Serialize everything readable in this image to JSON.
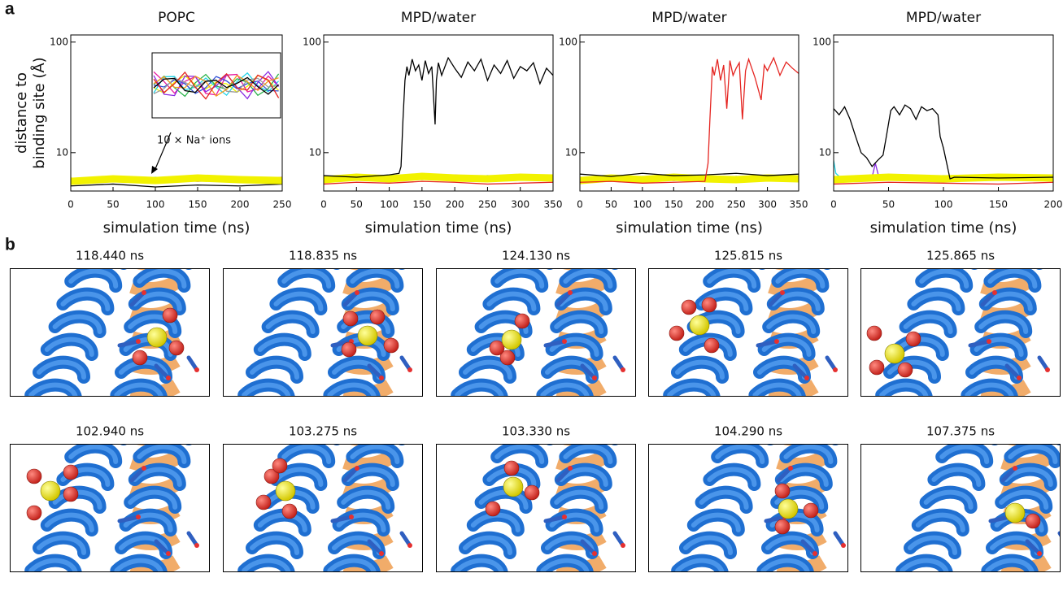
{
  "figure": {
    "panel_a": "a",
    "panel_b": "b",
    "snapshots": [
      "118.440 ns",
      "118.835 ns",
      "124.130 ns",
      "125.815 ns",
      "125.865 ns",
      "102.940 ns",
      "103.275 ns",
      "103.330 ns",
      "104.290 ns",
      "107.375 ns"
    ]
  },
  "chart_data": [
    {
      "type": "line",
      "title": "POPC",
      "xlabel": "simulation time (ns)",
      "ylabel": [
        "distance to",
        "binding site (Å)"
      ],
      "annotation": "10 × Na⁺ ions",
      "yscale": "log",
      "xlim": [
        0,
        250
      ],
      "xticks": [
        0,
        50,
        100,
        150,
        200,
        250
      ],
      "ylim": [
        4.5,
        116
      ],
      "yticks": [
        10,
        100
      ],
      "series": [
        {
          "color": "#000000",
          "x": [
            0,
            50,
            100,
            150,
            200,
            250
          ],
          "values": [
            5.0,
            5.2,
            4.9,
            5.1,
            5.0,
            5.2
          ]
        },
        {
          "color": "#e81ea0",
          "x": [
            0,
            50,
            100,
            150,
            200,
            250
          ],
          "values": [
            5.6,
            5.9,
            5.5,
            5.8,
            5.7,
            6.0
          ]
        },
        {
          "color": "#22d3e6",
          "x": [
            0,
            50,
            100,
            150,
            200,
            250
          ],
          "values": [
            5.8,
            5.5,
            6.0,
            5.7,
            5.9,
            5.6
          ]
        },
        {
          "color": "#2f4fd8",
          "x": [
            0,
            50,
            100,
            150,
            200,
            250
          ],
          "values": [
            5.4,
            5.7,
            5.5,
            5.6,
            5.4,
            5.8
          ]
        },
        {
          "color": "#29b34a",
          "x": [
            0,
            50,
            100,
            150,
            200,
            250
          ],
          "values": [
            5.7,
            5.9,
            5.6,
            6.0,
            5.8,
            5.7
          ]
        },
        {
          "color": "#8a2be2",
          "x": [
            0,
            50,
            100,
            150,
            200,
            250
          ],
          "values": [
            5.5,
            5.6,
            5.9,
            5.5,
            5.7,
            5.9
          ]
        },
        {
          "color": "#e52521",
          "x": [
            0,
            50,
            100,
            150,
            200,
            250
          ],
          "values": [
            5.3,
            5.5,
            5.4,
            5.6,
            5.5,
            5.3
          ]
        },
        {
          "color": "#f39a1e",
          "x": [
            0,
            50,
            100,
            150,
            200,
            250
          ],
          "values": [
            5.9,
            5.6,
            5.8,
            5.5,
            6.0,
            5.7
          ]
        },
        {
          "color": "#9a9a9a",
          "x": [
            0,
            50,
            100,
            150,
            200,
            250
          ],
          "values": [
            5.6,
            5.8,
            5.7,
            5.9,
            5.6,
            5.8
          ]
        },
        {
          "color": "#f2f200",
          "x": [
            0,
            50,
            100,
            150,
            200,
            250
          ],
          "values": [
            5.5,
            5.8,
            5.6,
            5.9,
            5.7,
            5.6
          ]
        }
      ]
    },
    {
      "type": "line",
      "title": "MPD/water",
      "xlabel": "simulation time (ns)",
      "yscale": "log",
      "xlim": [
        0,
        350
      ],
      "xticks": [
        0,
        50,
        100,
        150,
        200,
        250,
        300,
        350
      ],
      "ylim": [
        4.5,
        116
      ],
      "yticks": [
        10,
        100
      ],
      "series": [
        {
          "color": "#e81ea0",
          "x": [
            0,
            50,
            100,
            150,
            200,
            250,
            300,
            350
          ],
          "values": [
            5.9,
            6.2,
            5.8,
            6.1,
            6.3,
            5.9,
            6.2,
            6.0
          ]
        },
        {
          "color": "#22d3e6",
          "x": [
            0,
            50,
            100,
            150,
            200,
            250,
            300,
            350
          ],
          "values": [
            6.1,
            5.8,
            6.3,
            6.0,
            5.9,
            6.2,
            6.0,
            6.1
          ]
        },
        {
          "color": "#2f4fd8",
          "x": [
            0,
            50,
            100,
            150,
            200,
            250,
            300,
            350
          ],
          "values": [
            5.6,
            5.9,
            5.7,
            5.8,
            5.6,
            6.0,
            5.7,
            5.8
          ]
        },
        {
          "color": "#29b34a",
          "x": [
            0,
            50,
            100,
            150,
            200,
            250,
            300,
            350
          ],
          "values": [
            6.0,
            6.2,
            5.9,
            6.3,
            6.1,
            6.0,
            6.2,
            5.9
          ]
        },
        {
          "color": "#8a2be2",
          "x": [
            0,
            50,
            100,
            150,
            200,
            250,
            300,
            350
          ],
          "values": [
            5.7,
            5.8,
            6.1,
            5.7,
            5.9,
            6.2,
            5.8,
            6.0
          ]
        },
        {
          "color": "#e52521",
          "x": [
            0,
            50,
            100,
            150,
            200,
            250,
            300,
            350
          ],
          "values": [
            5.2,
            5.4,
            5.3,
            5.5,
            5.4,
            5.2,
            5.3,
            5.4
          ]
        },
        {
          "color": "#f39a1e",
          "x": [
            0,
            50,
            100,
            150,
            200,
            250,
            300,
            350
          ],
          "values": [
            6.1,
            5.8,
            6.0,
            5.7,
            6.2,
            5.9,
            6.0,
            5.8
          ]
        },
        {
          "color": "#9a9a9a",
          "x": [
            0,
            50,
            100,
            150,
            200,
            250,
            300,
            350
          ],
          "values": [
            5.8,
            6.0,
            5.9,
            6.1,
            5.8,
            6.0,
            5.9,
            6.1
          ]
        },
        {
          "color": "#f2f200",
          "x": [
            0,
            50,
            100,
            150,
            200,
            250,
            300,
            350
          ],
          "values": [
            5.7,
            6.0,
            5.8,
            6.1,
            5.9,
            5.8,
            6.0,
            5.9
          ]
        },
        {
          "color": "#000000",
          "x": [
            0,
            50,
            100,
            115,
            118,
            121,
            124,
            127,
            130,
            135,
            140,
            145,
            150,
            155,
            160,
            165,
            170,
            172,
            175,
            180,
            190,
            200,
            210,
            220,
            230,
            240,
            250,
            260,
            270,
            280,
            290,
            300,
            310,
            320,
            330,
            340,
            350
          ],
          "values": [
            6.2,
            6.0,
            6.3,
            6.5,
            7.5,
            20,
            45,
            60,
            50,
            70,
            55,
            62,
            45,
            68,
            52,
            60,
            18,
            45,
            65,
            50,
            72,
            58,
            48,
            66,
            55,
            70,
            45,
            62,
            52,
            68,
            47,
            60,
            55,
            65,
            42,
            58,
            50
          ]
        }
      ]
    },
    {
      "type": "line",
      "title": "MPD/water",
      "xlabel": "simulation time (ns)",
      "yscale": "log",
      "xlim": [
        0,
        350
      ],
      "xticks": [
        0,
        50,
        100,
        150,
        200,
        250,
        300,
        350
      ],
      "ylim": [
        4.5,
        116
      ],
      "yticks": [
        10,
        100
      ],
      "series": [
        {
          "color": "#e81ea0",
          "x": [
            0,
            50,
            100,
            150,
            200,
            250,
            300,
            350
          ],
          "values": [
            5.8,
            6.0,
            5.7,
            5.9,
            6.1,
            5.8,
            6.0,
            5.9
          ]
        },
        {
          "color": "#22d3e6",
          "x": [
            0,
            50,
            100,
            150,
            200,
            250,
            300,
            350
          ],
          "values": [
            6.0,
            5.7,
            6.1,
            5.9,
            5.8,
            6.1,
            5.9,
            6.0
          ]
        },
        {
          "color": "#2f4fd8",
          "x": [
            0,
            50,
            100,
            150,
            200,
            250,
            300,
            350
          ],
          "values": [
            5.5,
            5.8,
            5.6,
            5.7,
            5.5,
            5.9,
            5.6,
            5.7
          ]
        },
        {
          "color": "#29b34a",
          "x": [
            0,
            50,
            100,
            150,
            200,
            250,
            300,
            350
          ],
          "values": [
            5.9,
            6.1,
            5.8,
            6.2,
            6.0,
            5.9,
            6.1,
            5.8
          ]
        },
        {
          "color": "#8a2be2",
          "x": [
            0,
            50,
            100,
            150,
            200,
            250,
            300,
            350
          ],
          "values": [
            5.6,
            5.7,
            6.0,
            5.6,
            5.8,
            6.1,
            5.7,
            5.9
          ]
        },
        {
          "color": "#f39a1e",
          "x": [
            0,
            50,
            100,
            150,
            200,
            250,
            300,
            350
          ],
          "values": [
            6.0,
            5.7,
            5.9,
            5.6,
            6.1,
            5.8,
            5.9,
            5.7
          ]
        },
        {
          "color": "#9a9a9a",
          "x": [
            0,
            50,
            100,
            150,
            200,
            250,
            300,
            350
          ],
          "values": [
            5.7,
            5.9,
            5.8,
            6.0,
            5.7,
            5.9,
            5.8,
            6.0
          ]
        },
        {
          "color": "#f2f200",
          "x": [
            0,
            50,
            100,
            150,
            200,
            250,
            300,
            350
          ],
          "values": [
            5.6,
            5.9,
            5.7,
            6.0,
            5.8,
            5.7,
            5.9,
            5.8
          ]
        },
        {
          "color": "#000000",
          "x": [
            0,
            50,
            100,
            150,
            200,
            250,
            300,
            350
          ],
          "values": [
            6.4,
            6.1,
            6.5,
            6.2,
            6.3,
            6.5,
            6.2,
            6.4
          ]
        },
        {
          "color": "#e52521",
          "x": [
            0,
            50,
            100,
            150,
            200,
            205,
            208,
            212,
            215,
            220,
            225,
            230,
            235,
            240,
            245,
            250,
            255,
            260,
            265,
            270,
            280,
            290,
            295,
            300,
            310,
            320,
            330,
            340,
            350
          ],
          "values": [
            5.4,
            5.5,
            5.3,
            5.4,
            5.5,
            8,
            20,
            60,
            50,
            70,
            45,
            62,
            25,
            68,
            50,
            58,
            65,
            20,
            55,
            70,
            48,
            30,
            62,
            55,
            72,
            50,
            66,
            58,
            52
          ]
        }
      ]
    },
    {
      "type": "line",
      "title": "MPD/water",
      "xlabel": "simulation time (ns)",
      "yscale": "log",
      "xlim": [
        0,
        200
      ],
      "xticks": [
        0,
        50,
        100,
        150,
        200
      ],
      "ylim": [
        4.5,
        116
      ],
      "yticks": [
        10,
        100
      ],
      "series": [
        {
          "color": "#e81ea0",
          "x": [
            0,
            50,
            100,
            150,
            200
          ],
          "values": [
            5.9,
            6.1,
            5.8,
            6.0,
            6.2
          ]
        },
        {
          "color": "#22d3e6",
          "x": [
            0,
            2,
            5,
            50,
            100,
            150,
            200
          ],
          "values": [
            8.5,
            6.5,
            6.1,
            5.8,
            6.2,
            5.9,
            6.1
          ]
        },
        {
          "color": "#2f4fd8",
          "x": [
            0,
            50,
            100,
            150,
            200
          ],
          "values": [
            5.6,
            5.8,
            5.7,
            5.9,
            5.6
          ]
        },
        {
          "color": "#29b34a",
          "x": [
            0,
            50,
            100,
            150,
            200
          ],
          "values": [
            6.0,
            6.2,
            5.9,
            6.1,
            6.0
          ]
        },
        {
          "color": "#8a2be2",
          "x": [
            0,
            35,
            38,
            41,
            50,
            100,
            150,
            200
          ],
          "values": [
            5.7,
            6.0,
            8.0,
            6.1,
            5.8,
            6.0,
            5.7,
            5.9
          ]
        },
        {
          "color": "#e52521",
          "x": [
            0,
            50,
            100,
            150,
            200
          ],
          "values": [
            5.2,
            5.4,
            5.3,
            5.2,
            5.4
          ]
        },
        {
          "color": "#f39a1e",
          "x": [
            0,
            50,
            100,
            150,
            200
          ],
          "values": [
            6.1,
            5.8,
            6.0,
            5.9,
            6.1
          ]
        },
        {
          "color": "#9a9a9a",
          "x": [
            0,
            50,
            100,
            150,
            200
          ],
          "values": [
            5.8,
            6.0,
            5.9,
            6.1,
            5.8
          ]
        },
        {
          "color": "#f2f200",
          "x": [
            0,
            50,
            100,
            150,
            200
          ],
          "values": [
            5.7,
            6.0,
            5.8,
            6.0,
            5.9
          ]
        },
        {
          "color": "#000000",
          "x": [
            0,
            5,
            10,
            15,
            20,
            25,
            30,
            35,
            40,
            45,
            48,
            52,
            55,
            60,
            65,
            70,
            75,
            80,
            85,
            90,
            95,
            97,
            100,
            103,
            106,
            110,
            150,
            200
          ],
          "values": [
            25,
            22,
            26,
            20,
            14,
            10,
            9,
            7.5,
            8.5,
            9.5,
            14,
            24,
            26,
            22,
            27,
            25,
            20,
            26,
            24,
            25,
            22,
            14,
            11,
            8,
            5.8,
            6.0,
            5.9,
            6.0
          ]
        }
      ]
    }
  ]
}
